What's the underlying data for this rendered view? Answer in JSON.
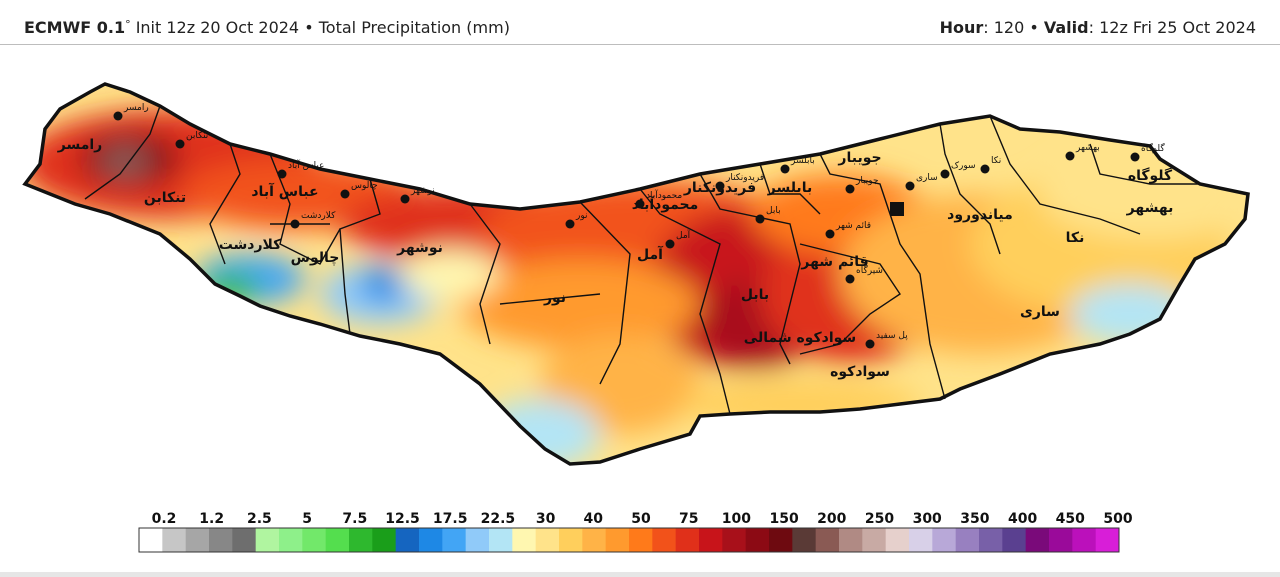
{
  "header": {
    "model": "ECMWF 0.1",
    "model_suffix": "°",
    "init": "Init 12z 20 Oct 2024",
    "bullet": "•",
    "field": "Total Precipitation (mm)",
    "hour_label": "Hour",
    "hour_value": ": 120",
    "valid_label": "Valid",
    "valid_value": ": 12z Fri 25 Oct 2024"
  },
  "legend": {
    "tick_labels": [
      "0.2",
      "1.2",
      "2.5",
      "5",
      "7.5",
      "12.5",
      "17.5",
      "22.5",
      "30",
      "40",
      "50",
      "75",
      "100",
      "150",
      "200",
      "250",
      "300",
      "350",
      "400",
      "450",
      "500"
    ],
    "colors": [
      "#ffffff",
      "#c6c6c6",
      "#a6a6a6",
      "#878787",
      "#6e6e6e",
      "#b0f5a0",
      "#8ef08a",
      "#72e86a",
      "#54de4e",
      "#2eb82e",
      "#1a9e1a",
      "#1565c0",
      "#1e88e5",
      "#42a5f5",
      "#90caf9",
      "#b3e5f5",
      "#fff7b0",
      "#ffe38a",
      "#ffcf5c",
      "#ffb347",
      "#ff9a2e",
      "#ff7a1a",
      "#f2521a",
      "#e0301a",
      "#c8141a",
      "#a8101a",
      "#8c0a14",
      "#6e0a10",
      "#5a3a36",
      "#8a5a54",
      "#b08a84",
      "#c8aaa4",
      "#e6d0cc",
      "#d8d0e8",
      "#b8a8d8",
      "#9880c0",
      "#7860a8",
      "#5a4090",
      "#7a0a7a",
      "#9a0a9a",
      "#bb10bb",
      "#d81ed8"
    ]
  },
  "map": {
    "cities": [
      {
        "name": "رامسر",
        "name_small": "رامسر"
      },
      {
        "name": "تنکابن",
        "name_small": "تنکابن"
      },
      {
        "name": "عباس آباد",
        "name_small": "عباس آباد"
      },
      {
        "name": "کلاردشت",
        "name_small": "کلاردشت"
      },
      {
        "name": "چالوس",
        "name_small": "چالوس"
      },
      {
        "name": "نوشهر",
        "name_small": "نوشهر"
      },
      {
        "name": "نور",
        "name_small": "نور"
      },
      {
        "name": "محمودآباد",
        "name_small": "محمودآباد"
      },
      {
        "name": "آمل",
        "name_small": "آمل"
      },
      {
        "name": "بابل",
        "name_small": "بابل"
      },
      {
        "name": "بابلسر",
        "name_small": "بابلسر"
      },
      {
        "name": "فریدونکنار",
        "name_small": "فریدونکنار"
      },
      {
        "name": "جویبار",
        "name_small": "جویبار"
      },
      {
        "name": "قائم شهر",
        "name_small": "قائم شهر"
      },
      {
        "name": "سوادکوه شمالی",
        "name_small": "شیرگاه"
      },
      {
        "name": "سوادکوه",
        "name_small": "پل سفید"
      },
      {
        "name": "ساری",
        "name_small": "ساری"
      },
      {
        "name": "میاندورود",
        "name_small": "سورک"
      },
      {
        "name": "نکا",
        "name_small": "نکا"
      },
      {
        "name": "بهشهر",
        "name_small": "بهشهر"
      },
      {
        "name": "گلوگاه",
        "name_small": "گلوگاه"
      }
    ]
  }
}
